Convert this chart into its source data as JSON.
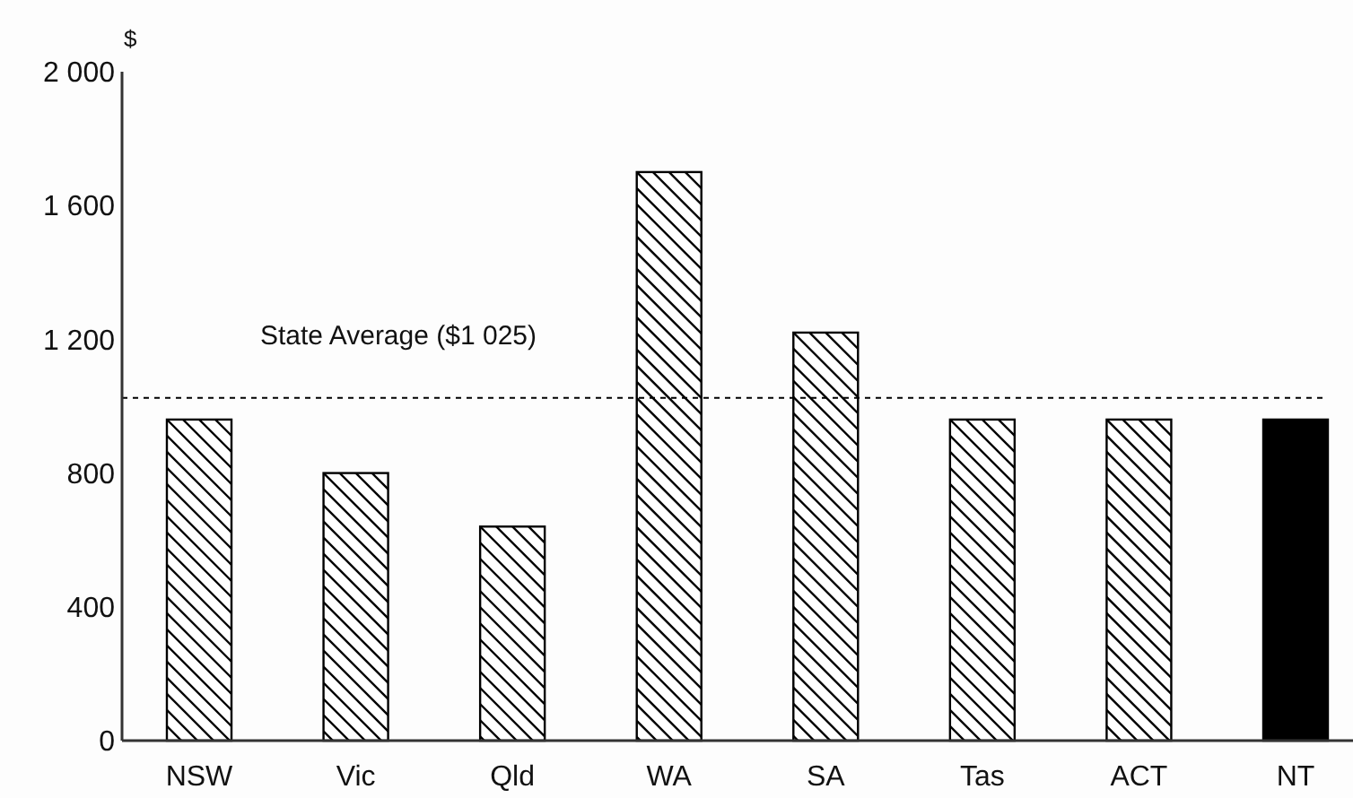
{
  "chart_data": {
    "type": "bar",
    "ylabel": "$",
    "categories": [
      "NSW",
      "Vic",
      "Qld",
      "WA",
      "SA",
      "Tas",
      "ACT",
      "NT"
    ],
    "values": [
      960,
      800,
      640,
      1700,
      1220,
      960,
      960,
      960
    ],
    "colors": [
      "#ffffff",
      "#ffffff",
      "#ffffff",
      "#ffffff",
      "#ffffff",
      "#ffffff",
      "#ffffff",
      "#000000"
    ],
    "ylim": [
      0,
      2000
    ],
    "yticks": [
      0,
      {
        "value": 400,
        "label": "400"
      },
      {
        "value": 800,
        "label": "800"
      },
      {
        "value": 1200,
        "label": "1 200"
      },
      {
        "value": 1600,
        "label": "1 600"
      },
      {
        "value": 2000,
        "label": "2 000"
      }
    ],
    "ref_lines": [
      {
        "axis": "y",
        "value": 1025,
        "label": "State Average ($1 025)",
        "line_style": "dashed",
        "color": "#000000"
      }
    ],
    "grid": false
  }
}
